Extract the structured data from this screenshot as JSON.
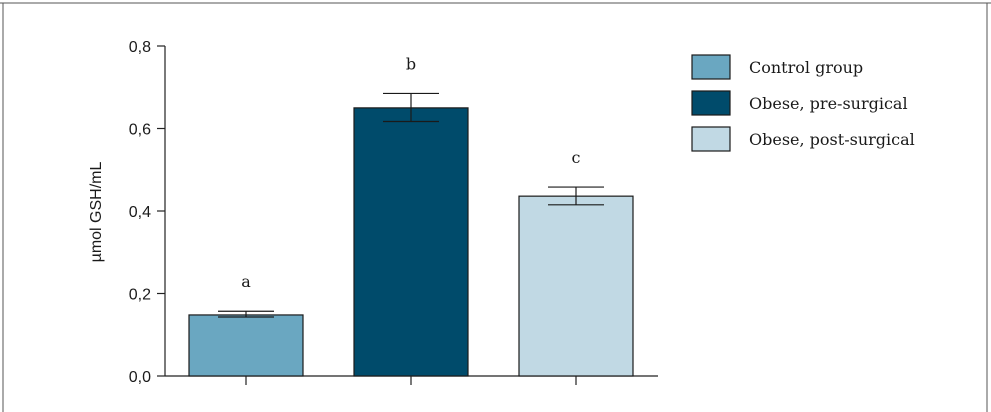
{
  "chart_data": {
    "type": "bar",
    "categories": [
      "Control group",
      "Obese, pre-surgical",
      "Obese, post-surgical"
    ],
    "values": [
      0.148,
      0.65,
      0.436
    ],
    "error_upper": [
      0.157,
      0.685,
      0.458
    ],
    "error_lower": [
      0.143,
      0.617,
      0.415
    ],
    "significance_letters": [
      "a",
      "b",
      "c"
    ],
    "colors": [
      "#6aa7c1",
      "#004b6b",
      "#c1d9e4"
    ],
    "title": "",
    "xlabel": "",
    "ylabel": "µmol GSH/mL",
    "ylim": [
      0,
      0.8
    ],
    "yticks": [
      0.0,
      0.2,
      0.4,
      0.6,
      0.8
    ],
    "ytick_labels": [
      "0,0",
      "0,2",
      "0,4",
      "0,6",
      "0,8"
    ],
    "grid": false,
    "legend": {
      "position": "top-right",
      "entries": [
        "Control group",
        "Obese, pre-surgical",
        "Obese, post-surgical"
      ]
    }
  }
}
